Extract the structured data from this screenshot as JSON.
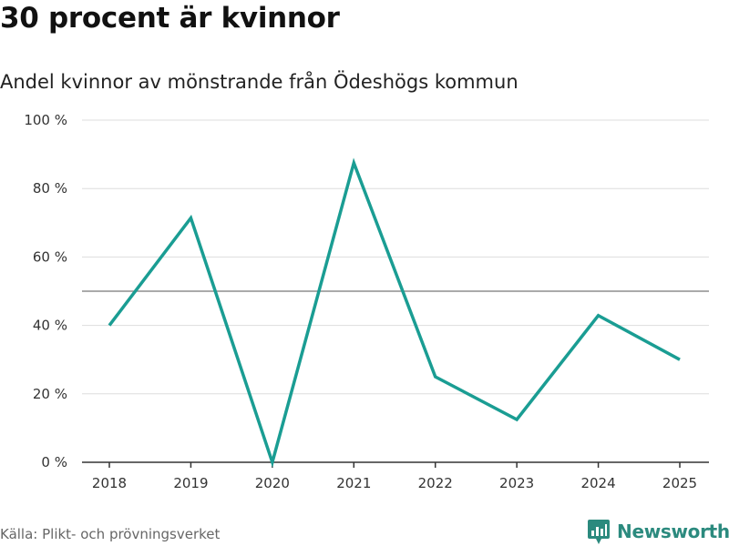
{
  "header": {
    "title": "30 procent är kvinnor",
    "subtitle": "Andel kvinnor av mönstrande från Ödeshögs kommun"
  },
  "footer": {
    "source": "Källa: Plikt- och prövningsverket",
    "brand": "Newsworthy",
    "brand_icon": "newsworthy-logo-icon"
  },
  "colors": {
    "line": "#1a9d93",
    "brand": "#2b8a7e",
    "grid": "#dddddd",
    "reference": "#777777",
    "axis": "#333333"
  },
  "chart_data": {
    "type": "line",
    "title": "30 procent är kvinnor",
    "subtitle": "Andel kvinnor av mönstrande från Ödeshögs kommun",
    "xlabel": "",
    "ylabel": "",
    "x": [
      "2018",
      "2019",
      "2020",
      "2021",
      "2022",
      "2023",
      "2024",
      "2025"
    ],
    "series": [
      {
        "name": "Andel kvinnor",
        "values": [
          40,
          71.4,
          0,
          87.5,
          25,
          12.5,
          42.9,
          30
        ]
      }
    ],
    "ylim": [
      0,
      100
    ],
    "yticks": [
      0,
      20,
      40,
      60,
      80,
      100
    ],
    "ytick_labels": [
      "0 %",
      "20 %",
      "40 %",
      "60 %",
      "80 %",
      "100 %"
    ],
    "reference_line": 50,
    "grid": true
  }
}
